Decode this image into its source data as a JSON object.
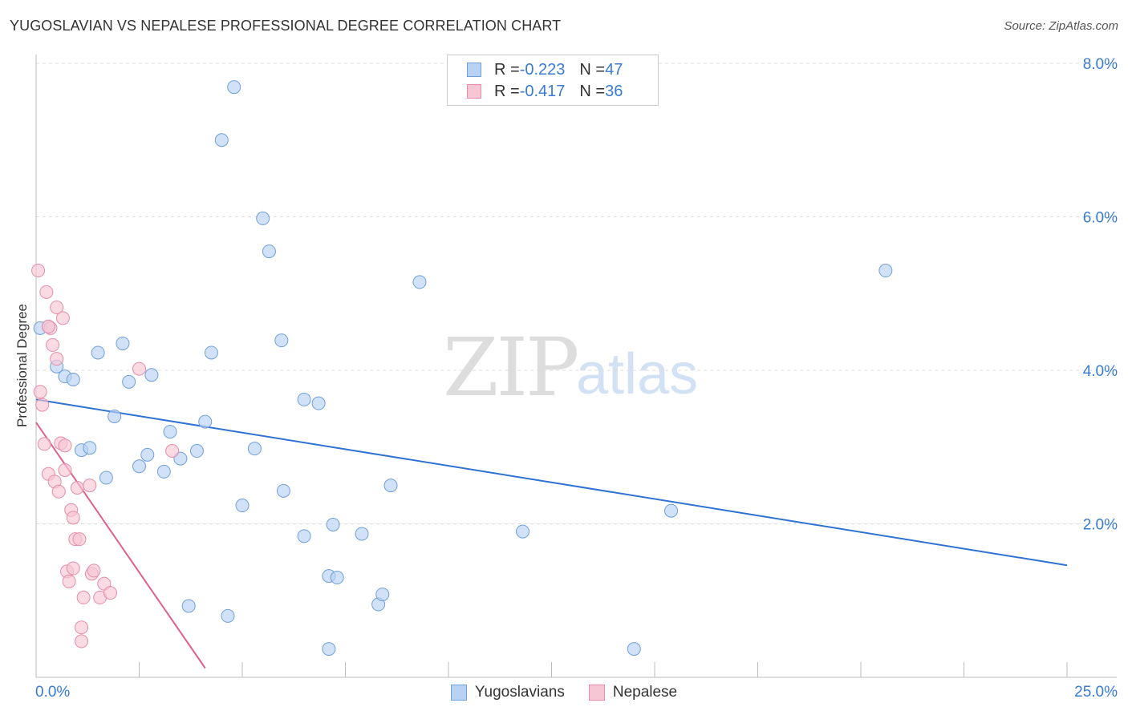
{
  "title": "YUGOSLAVIAN VS NEPALESE PROFESSIONAL DEGREE CORRELATION CHART",
  "source": "Source: ZipAtlas.com",
  "watermark": {
    "zip": "ZIP",
    "atlas": "atlas"
  },
  "legend": {
    "rows": [
      {
        "r_label": "R = ",
        "r_value": "-0.223",
        "n_label": "N = ",
        "n_value": "47"
      },
      {
        "r_label": "R = ",
        "r_value": "-0.417",
        "n_label": "N = ",
        "n_value": "36"
      }
    ]
  },
  "bottom_legend": {
    "yugoslavians": "Yugoslavians",
    "nepalese": "Nepalese"
  },
  "colors": {
    "blue_fill": "#b9d1f2",
    "blue_stroke": "#6f9fdc",
    "blue_line": "#2f72d2",
    "pink_fill": "#f7c6d4",
    "pink_stroke": "#e58da8",
    "pink_line": "#e0608a",
    "axis_text": "#3a7bd5",
    "grid": "#dcdcdc"
  },
  "chart_data": {
    "type": "scatter",
    "title": "YUGOSLAVIAN VS NEPALESE PROFESSIONAL DEGREE CORRELATION CHART",
    "xlabel": "",
    "ylabel": "Professional Degree",
    "xlim": [
      0,
      25
    ],
    "ylim": [
      0,
      8
    ],
    "x_tick_labels": [
      "0.0%",
      "25.0%"
    ],
    "y_ticks": [
      2,
      4,
      6,
      8
    ],
    "y_tick_labels": [
      "2.0%",
      "4.0%",
      "6.0%",
      "8.0%"
    ],
    "series": [
      {
        "name": "Yugoslavians",
        "r": -0.223,
        "n": 47,
        "trend": {
          "x": [
            0,
            25
          ],
          "y": [
            3.62,
            1.46
          ]
        },
        "points": [
          [
            0.1,
            4.55
          ],
          [
            0.3,
            4.57
          ],
          [
            0.5,
            4.05
          ],
          [
            0.7,
            3.92
          ],
          [
            0.9,
            3.88
          ],
          [
            1.1,
            2.96
          ],
          [
            1.3,
            2.99
          ],
          [
            1.5,
            4.23
          ],
          [
            1.7,
            2.6
          ],
          [
            1.9,
            3.4
          ],
          [
            2.1,
            4.35
          ],
          [
            2.25,
            3.85
          ],
          [
            2.5,
            2.75
          ],
          [
            2.7,
            2.9
          ],
          [
            2.8,
            3.94
          ],
          [
            3.1,
            2.68
          ],
          [
            3.25,
            3.2
          ],
          [
            3.5,
            2.85
          ],
          [
            3.7,
            0.93
          ],
          [
            3.9,
            2.95
          ],
          [
            4.1,
            3.33
          ],
          [
            4.25,
            4.23
          ],
          [
            4.5,
            7.0
          ],
          [
            4.65,
            0.8
          ],
          [
            4.8,
            7.69
          ],
          [
            5.0,
            2.24
          ],
          [
            5.3,
            2.98
          ],
          [
            5.5,
            5.98
          ],
          [
            5.65,
            5.55
          ],
          [
            5.95,
            4.39
          ],
          [
            6.0,
            2.43
          ],
          [
            6.5,
            3.62
          ],
          [
            6.5,
            1.84
          ],
          [
            6.85,
            3.57
          ],
          [
            7.1,
            1.32
          ],
          [
            7.1,
            0.37
          ],
          [
            7.2,
            1.99
          ],
          [
            7.3,
            1.3
          ],
          [
            7.9,
            1.87
          ],
          [
            8.3,
            0.95
          ],
          [
            8.4,
            1.08
          ],
          [
            8.6,
            2.5
          ],
          [
            9.3,
            5.15
          ],
          [
            11.8,
            1.9
          ],
          [
            14.5,
            0.37
          ],
          [
            15.4,
            2.17
          ],
          [
            20.6,
            5.3
          ]
        ]
      },
      {
        "name": "Nepalese",
        "r": -0.417,
        "n": 36,
        "trend": {
          "x": [
            0,
            4.1
          ],
          "y": [
            3.32,
            0.12
          ]
        },
        "points": [
          [
            0.05,
            5.3
          ],
          [
            0.1,
            3.72
          ],
          [
            0.15,
            3.55
          ],
          [
            0.2,
            3.04
          ],
          [
            0.25,
            5.02
          ],
          [
            0.3,
            2.65
          ],
          [
            0.35,
            4.55
          ],
          [
            0.4,
            4.33
          ],
          [
            0.45,
            2.55
          ],
          [
            0.5,
            4.15
          ],
          [
            0.5,
            4.82
          ],
          [
            0.55,
            2.42
          ],
          [
            0.6,
            3.05
          ],
          [
            0.65,
            4.68
          ],
          [
            0.7,
            2.7
          ],
          [
            0.7,
            3.02
          ],
          [
            0.75,
            1.38
          ],
          [
            0.8,
            1.25
          ],
          [
            0.85,
            2.18
          ],
          [
            0.9,
            2.08
          ],
          [
            0.9,
            1.42
          ],
          [
            0.95,
            1.8
          ],
          [
            1.0,
            2.47
          ],
          [
            1.05,
            1.8
          ],
          [
            1.1,
            0.65
          ],
          [
            1.1,
            0.47
          ],
          [
            1.15,
            1.04
          ],
          [
            1.3,
            2.5
          ],
          [
            1.35,
            1.35
          ],
          [
            1.4,
            1.39
          ],
          [
            1.55,
            1.04
          ],
          [
            1.65,
            1.22
          ],
          [
            1.8,
            1.1
          ],
          [
            2.5,
            4.02
          ],
          [
            3.3,
            2.95
          ],
          [
            0.3,
            4.57
          ]
        ]
      }
    ]
  }
}
